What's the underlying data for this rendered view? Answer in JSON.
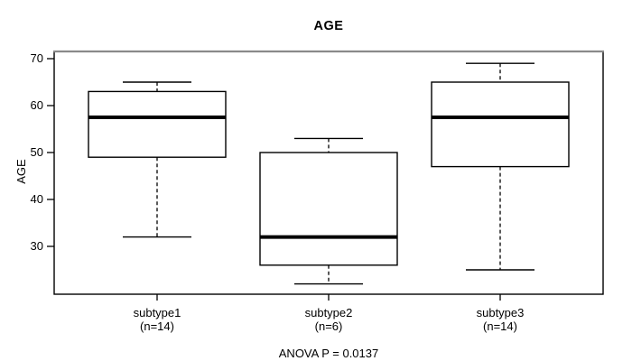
{
  "title": "AGE",
  "y_axis_label": "AGE",
  "annotation": "ANOVA P = 0.0137",
  "colors": {
    "line": "#000000",
    "top_border": "#8a8a8a",
    "background": "#ffffff",
    "box_fill": "#ffffff"
  },
  "chart_data": {
    "type": "boxplot",
    "title": "AGE",
    "xlabel": "",
    "ylabel": "AGE",
    "ylim": [
      20,
      71
    ],
    "yticks": [
      30,
      40,
      50,
      60,
      70
    ],
    "grid": false,
    "legend": "none",
    "categories": [
      "subtype1",
      "subtype2",
      "subtype3"
    ],
    "series": [
      {
        "name": "subtype1",
        "n": 14,
        "n_label": "(n=14)",
        "whisker_low": 32,
        "q1": 49,
        "median": 57.5,
        "q3": 63,
        "whisker_high": 65
      },
      {
        "name": "subtype2",
        "n": 6,
        "n_label": "(n=6)",
        "whisker_low": 22,
        "q1": 26,
        "median": 32,
        "q3": 50,
        "whisker_high": 53
      },
      {
        "name": "subtype3",
        "n": 14,
        "n_label": "(n=14)",
        "whisker_low": 25,
        "q1": 47,
        "median": 57.5,
        "q3": 65,
        "whisker_high": 69
      }
    ],
    "annotation": "ANOVA P = 0.0137"
  }
}
